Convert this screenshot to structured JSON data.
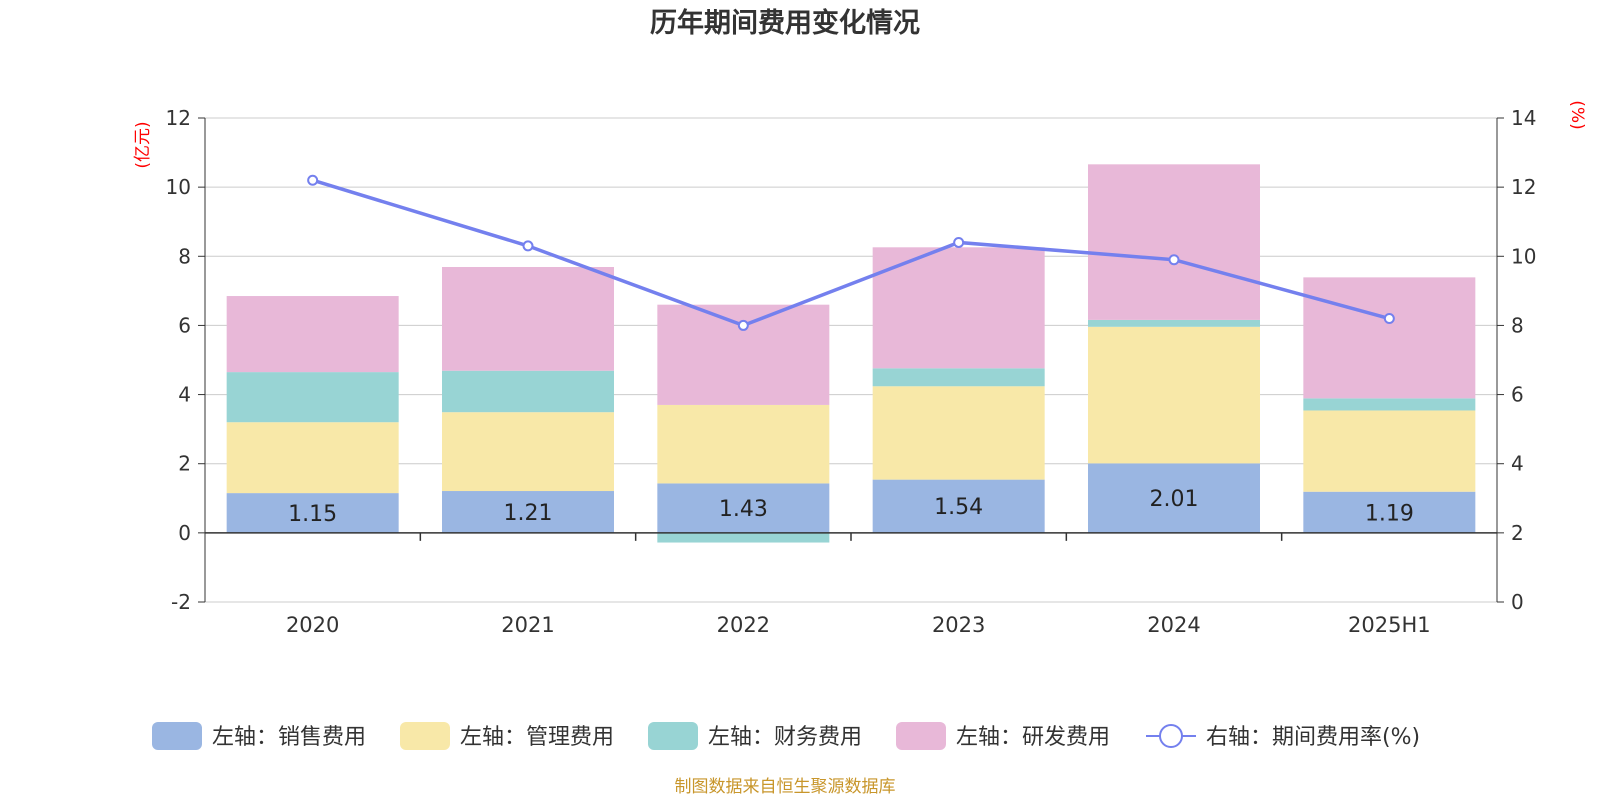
{
  "chart_data": {
    "type": "bar",
    "title": "历年期间费用变化情况",
    "source_text": "制图数据来自恒生聚源数据库",
    "categories": [
      "2020",
      "2021",
      "2022",
      "2023",
      "2024",
      "2025H1"
    ],
    "left_axis": {
      "unit": "(亿元)",
      "ylim": [
        -2,
        12
      ],
      "ticks": [
        -2,
        0,
        2,
        4,
        6,
        8,
        10,
        12
      ]
    },
    "right_axis": {
      "unit": "(%)",
      "ylim": [
        0,
        14
      ],
      "ticks": [
        0,
        2,
        4,
        6,
        8,
        10,
        12,
        14
      ]
    },
    "grid": true,
    "legend_position": "bottom",
    "series": [
      {
        "name": "左轴：销售费用",
        "type": "bar",
        "axis": "left",
        "color": "#9ab6e2",
        "values": [
          1.15,
          1.21,
          1.43,
          1.54,
          2.01,
          1.19
        ],
        "data_labels": [
          "1.15",
          "1.21",
          "1.43",
          "1.54",
          "2.01",
          "1.19"
        ]
      },
      {
        "name": "左轴：管理费用",
        "type": "bar",
        "axis": "left",
        "color": "#f8e8a8",
        "values": [
          2.05,
          2.28,
          2.27,
          2.7,
          3.95,
          2.35
        ]
      },
      {
        "name": "左轴：财务费用",
        "type": "bar",
        "axis": "left",
        "color": "#98d4d4",
        "values": [
          1.45,
          1.2,
          -0.28,
          0.52,
          0.2,
          0.35
        ]
      },
      {
        "name": "左轴：研发费用",
        "type": "bar",
        "axis": "left",
        "color": "#e8b8d8",
        "values": [
          2.2,
          3.0,
          2.9,
          3.5,
          4.5,
          3.5
        ]
      },
      {
        "name": "右轴：期间费用率(%)",
        "type": "line",
        "axis": "right",
        "color": "#7480ee",
        "values": [
          12.2,
          10.3,
          8.0,
          10.4,
          9.9,
          8.2
        ]
      }
    ]
  }
}
